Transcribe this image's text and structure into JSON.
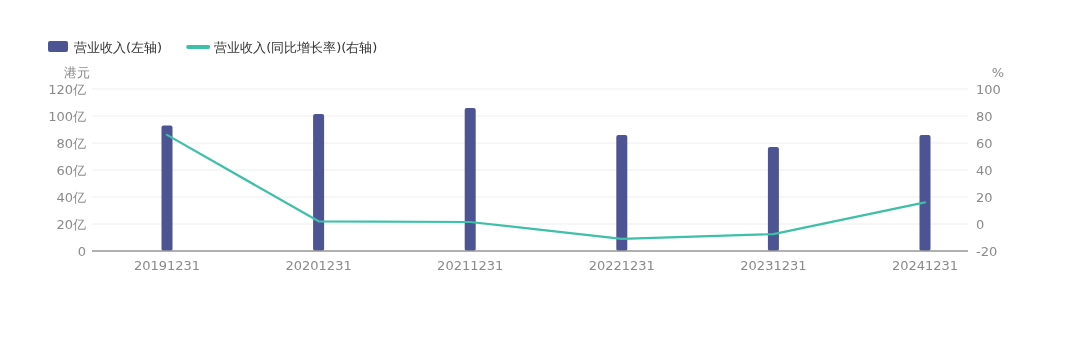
{
  "chart_data": {
    "type": "bar",
    "ylabel": "港元",
    "y2label": "%",
    "categories": [
      "20191231",
      "20201231",
      "20211231",
      "20221231",
      "20231231",
      "20241231"
    ],
    "series": [
      {
        "name": "营业收入(左轴)",
        "color": "#4d5494",
        "values": [
          93,
          101.5,
          106,
          86,
          77,
          86
        ]
      },
      {
        "name": "营业收入(同比增长率)(右轴)",
        "type": "line",
        "axis": "y2",
        "color": "#3dbfa8",
        "values": [
          66,
          2,
          1.5,
          -11,
          -7.5,
          16
        ]
      }
    ],
    "ylim": [
      0,
      120
    ],
    "yticks": [
      0,
      {
        "value": 20,
        "label": "20亿"
      },
      {
        "value": 40,
        "label": "40亿"
      },
      {
        "value": 60,
        "label": "60亿"
      },
      {
        "value": 80,
        "label": "80亿"
      },
      {
        "value": 100,
        "label": "100亿"
      },
      {
        "value": 120,
        "label": "120亿"
      }
    ],
    "y2lim": [
      -20,
      100
    ],
    "y2ticks": [
      -20,
      0,
      20,
      40,
      60,
      80,
      100
    ],
    "grid": "y",
    "legend": "top left",
    "marker": "none",
    "line_style": "solid"
  }
}
